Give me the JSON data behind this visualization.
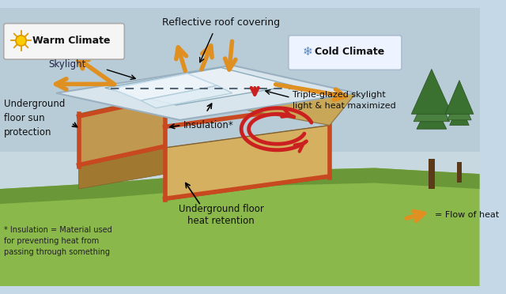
{
  "bg_sky": "#c5d8e8",
  "bg_sky_bottom": "#a8c4d8",
  "ground_color": "#8ab84a",
  "ground_dark": "#6a9838",
  "house_wall_left": "#c8a85a",
  "house_wall_right": "#d4b870",
  "house_wall_front": "#b89448",
  "house_wall_edge": "#7a6030",
  "insulation_color": "#c84820",
  "roof_top": "#dce8f0",
  "roof_shadow": "#b0c8d8",
  "arrow_orange": "#e09020",
  "arrow_red": "#cc2020",
  "warm_box_bg": "#f5f5f5",
  "cold_box_bg": "#eef4ff",
  "label_color": "#1a1a1a",
  "labels": {
    "warm_climate": "Warm Climate",
    "cold_climate": "Cold Climate",
    "skylight": "Skylight",
    "reflective_roof": "Reflective roof covering",
    "triple_glazed": "Triple-glazed skylight\nlight & heat maximized",
    "underground_sun": "Underground\nfloor sun\nprotection",
    "insulation": "Insulation*",
    "underground_heat": "Underground floor\nheat retention",
    "flow_of_heat": "= Flow of heat",
    "footnote": "* Insulation = Material used\nfor preventing heat from\npassing through something"
  }
}
